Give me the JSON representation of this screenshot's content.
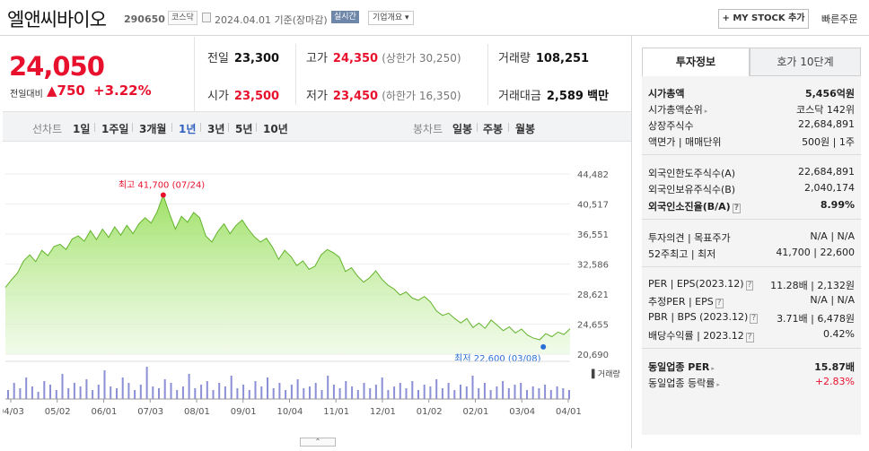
{
  "header": {
    "company_name": "엘앤씨바이오",
    "code": "290650",
    "market_badge": "코스닥",
    "date_text": "2024.04.01  기준(장마감)",
    "live_badge": "실시간",
    "overview_btn": "기업개요 ▾",
    "mystock_btn": "+ MY STOCK 추가",
    "quick_order": "빠른주문"
  },
  "price": {
    "current": "24,050",
    "change_label": "전일대비",
    "change_value": "▲750",
    "change_pct": "+3.22%"
  },
  "summary": {
    "prev_close_label": "전일",
    "prev_close": "23,300",
    "high_label": "고가",
    "high": "24,350",
    "upper_limit": "(상한가 30,250)",
    "volume_label": "거래량",
    "volume": "108,251",
    "open_label": "시가",
    "open": "23,500",
    "low_label": "저가",
    "low": "23,450",
    "lower_limit": "(하한가 16,350)",
    "value_label": "거래대금",
    "value": "2,589",
    "value_unit": "백만"
  },
  "periods": {
    "line_label": "선차트",
    "items": [
      "1일",
      "1주일",
      "3개월",
      "1년",
      "3년",
      "5년",
      "10년"
    ],
    "active": "1년",
    "candle_label": "봉차트",
    "candle_items": [
      "일봉",
      "주봉",
      "월봉"
    ]
  },
  "chart_data": {
    "type": "area",
    "y_ticks": [
      "44,482",
      "40,517",
      "36,551",
      "32,586",
      "28,621",
      "24,655",
      "20,690"
    ],
    "ylim": [
      20690,
      44482
    ],
    "x_labels": [
      "04/03",
      "05/02",
      "06/01",
      "07/03",
      "08/01",
      "09/01",
      "10/04",
      "11/01",
      "12/01",
      "01/02",
      "02/01",
      "03/04",
      "04/01"
    ],
    "high_label": "최고 41,700 (07/24)",
    "low_label": "최저 22,600 (03/08)",
    "volume_label": "거래량",
    "price_series": [
      29500,
      30500,
      31400,
      33000,
      33800,
      32900,
      34400,
      33700,
      34900,
      35200,
      34500,
      35900,
      36300,
      35600,
      37000,
      35800,
      37200,
      36100,
      37500,
      36400,
      37700,
      36600,
      37900,
      38700,
      38000,
      39500,
      41700,
      39300,
      37200,
      38900,
      38100,
      39400,
      38700,
      36300,
      35500,
      36900,
      37900,
      36600,
      37700,
      38400,
      37200,
      36200,
      35500,
      36000,
      34800,
      33200,
      34400,
      33600,
      32400,
      33000,
      31900,
      32300,
      33800,
      34500,
      34100,
      33500,
      31600,
      32100,
      31000,
      30200,
      30800,
      31700,
      30600,
      29800,
      29300,
      28500,
      28900,
      28100,
      27800,
      28300,
      27600,
      26400,
      25800,
      26100,
      25400,
      24800,
      25400,
      24200,
      24800,
      24100,
      25200,
      24500,
      23800,
      24300,
      23500,
      24000,
      23200,
      22800,
      22600,
      23400,
      23000,
      23600,
      23300,
      24050
    ],
    "volume_series": [
      5,
      9,
      6,
      12,
      7,
      4,
      10,
      8,
      5,
      14,
      6,
      9,
      7,
      11,
      5,
      8,
      16,
      7,
      6,
      12,
      9,
      5,
      8,
      18,
      7,
      6,
      11,
      9,
      5,
      7,
      14,
      6,
      8,
      10,
      5,
      9,
      7,
      13,
      6,
      8,
      5,
      10,
      7,
      12,
      6,
      9,
      5,
      8,
      11,
      6,
      7,
      9,
      5,
      13,
      8,
      6,
      10,
      7,
      5,
      9,
      6,
      8,
      12,
      5,
      7,
      9,
      6,
      10,
      5,
      8,
      7,
      11,
      6,
      9,
      5,
      8,
      7,
      13,
      6,
      9,
      5,
      7,
      10,
      6,
      8,
      9,
      5,
      7,
      6,
      8,
      5,
      7,
      6,
      5
    ]
  },
  "right_panel": {
    "tab_info": "투자정보",
    "tab_orderbook": "호가 10단계",
    "market_cap_label": "시가총액",
    "market_cap": "5,456억원",
    "cap_rank_label": "시가총액순위",
    "cap_rank": "코스닥 142위",
    "shares_label": "상장주식수",
    "shares": "22,684,891",
    "face_label": "액면가 | 매매단위",
    "face": "500원 | 1주",
    "foreign_limit_label": "외국인한도주식수(A)",
    "foreign_limit": "22,684,891",
    "foreign_hold_label": "외국인보유주식수(B)",
    "foreign_hold": "2,040,174",
    "foreign_ratio_label": "외국인소진율(B/A)",
    "foreign_ratio": "8.99%",
    "opinion_label": "투자의견 | 목표주가",
    "opinion": "N/A | N/A",
    "w52_label": "52주최고 | 최저",
    "w52": "41,700 | 22,600",
    "per_label": "PER | EPS(2023.12)",
    "per": "11.28배 | 2,132원",
    "est_per_label": "추정PER | EPS",
    "est_per": "N/A | N/A",
    "pbr_label": "PBR | BPS (2023.12)",
    "pbr": "3.71배 | 6,478원",
    "div_label": "배당수익률 | 2023.12",
    "div": "0.42%",
    "ind_per_label": "동일업종 PER",
    "ind_per": "15.87배",
    "ind_chg_label": "동일업종 등락률",
    "ind_chg": "+2.83%"
  }
}
